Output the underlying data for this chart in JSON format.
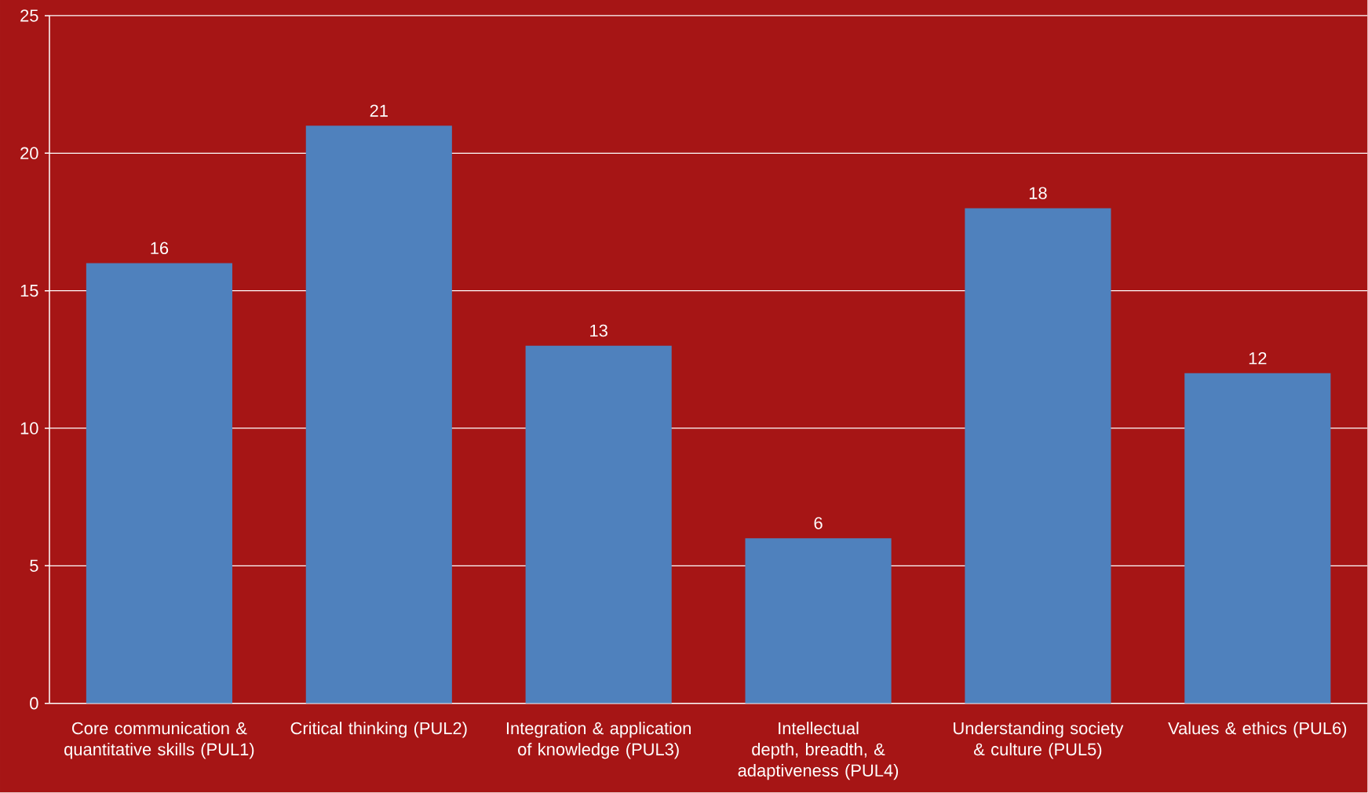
{
  "chart_data": {
    "type": "bar",
    "categories": [
      "Core communication & quantitative skills (PUL1)",
      "Critical thinking (PUL2)",
      "Integration & application of knowledge (PUL3)",
      "Intellectual depth, breadth, & adaptiveness (PUL4)",
      "Understanding society & culture (PUL5)",
      "Values & ethics (PUL6)"
    ],
    "values": [
      16,
      21,
      13,
      6,
      18,
      12
    ],
    "color": "#4f81bd",
    "ylim": [
      0,
      25
    ],
    "yticks": [
      0,
      5,
      10,
      15,
      20,
      25
    ],
    "grid": "y",
    "data_labels": true
  }
}
